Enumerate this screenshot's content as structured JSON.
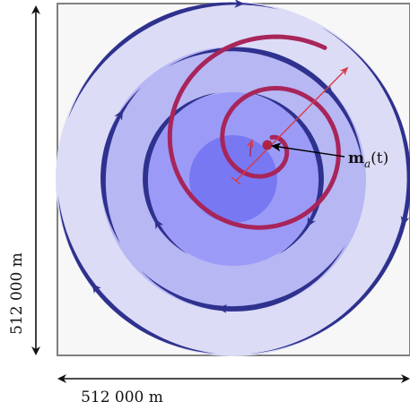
{
  "dimensions": {
    "horizontal_label": "512 000 m",
    "vertical_label": "512 000 m"
  },
  "annotation": {
    "bold_part": "m",
    "subscript": "a",
    "argument": "(t)"
  },
  "colors": {
    "domain_fill": "#f7f7f7",
    "domain_border": "#808080",
    "outer_disc": "#dcdcf6",
    "middle_disc": "#b7b7f4",
    "inner_disc": "#9b9bf7",
    "core_disc": "#7878f3",
    "circulation_arrows": "#2e318d",
    "spiral": "#a8255a",
    "axis_arrow": "#d73c45",
    "center_marker": "#ad2346",
    "annotation_arrow": "#000000"
  }
}
